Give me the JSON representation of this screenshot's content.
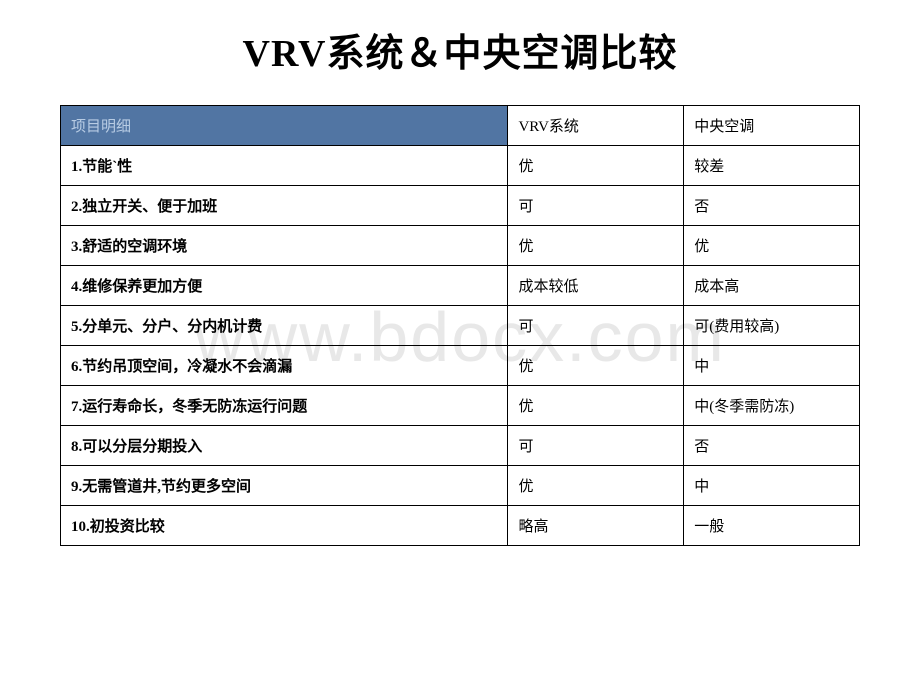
{
  "title": "VRV系统＆中央空调比较",
  "watermark": "www.bdocx.com",
  "table": {
    "header": {
      "col1": "项目明细",
      "col2": "VRV系统",
      "col3": "中央空调"
    },
    "header_bg_color": "#5175a3",
    "header_text_color": "#b8cce4",
    "border_color": "#000000",
    "rows": [
      {
        "label": "1.节能`性",
        "vrv": "优",
        "central": "较差"
      },
      {
        "label": "2.独立开关、便于加班",
        "vrv": "可",
        "central": "否"
      },
      {
        "label": "3.舒适的空调环境",
        "vrv": "优",
        "central": "优"
      },
      {
        "label": "4.维修保养更加方便",
        "vrv": "成本较低",
        "central": "成本高"
      },
      {
        "label": "5.分单元、分户、分内机计费",
        "vrv": "可",
        "central": "可(费用较高)"
      },
      {
        "label": "6.节约吊顶空间，冷凝水不会滴漏",
        "vrv": "优",
        "central": "中"
      },
      {
        "label": "7.运行寿命长，冬季无防冻运行问题",
        "vrv": "优",
        "central": "中(冬季需防冻)"
      },
      {
        "label": "8.可以分层分期投入",
        "vrv": "可",
        "central": "否"
      },
      {
        "label": "9.无需管道井,节约更多空间",
        "vrv": "优",
        "central": "中"
      },
      {
        "label": "10.初投资比较",
        "vrv": "略高",
        "central": "一般"
      }
    ]
  }
}
